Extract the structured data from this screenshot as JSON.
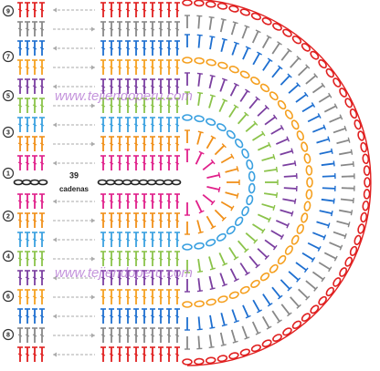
{
  "row_labels": [
    "9",
    "7",
    "5",
    "3",
    "1",
    "2",
    "4",
    "6",
    "8"
  ],
  "chain_count": "39",
  "chain_word": "cadenas",
  "watermarks": [
    "www.tejiendoperu.com",
    "www.tejiendoperu.com"
  ]
}
